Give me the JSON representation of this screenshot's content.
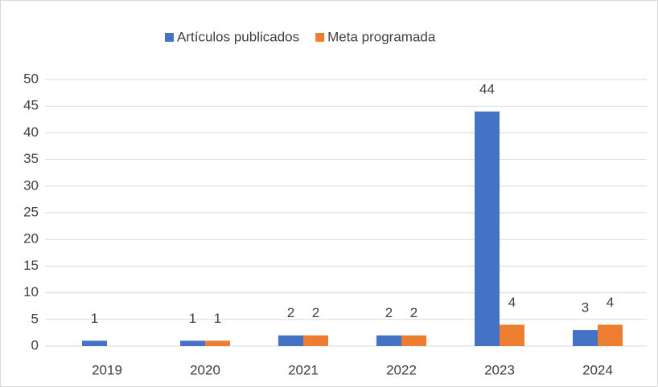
{
  "chart_data": {
    "type": "bar",
    "categories": [
      "2019",
      "2020",
      "2021",
      "2022",
      "2023",
      "2024"
    ],
    "series": [
      {
        "name": "Artículos publicados",
        "color": "#4472c4",
        "values": [
          1,
          1,
          2,
          2,
          44,
          3
        ]
      },
      {
        "name": "Meta programada",
        "color": "#ed7d31",
        "values": [
          null,
          1,
          2,
          2,
          4,
          4
        ]
      }
    ],
    "ylim": [
      0,
      50
    ],
    "yticks": [
      0,
      5,
      10,
      15,
      20,
      25,
      30,
      35,
      40,
      45,
      50
    ],
    "grid": true,
    "legend": "top"
  }
}
